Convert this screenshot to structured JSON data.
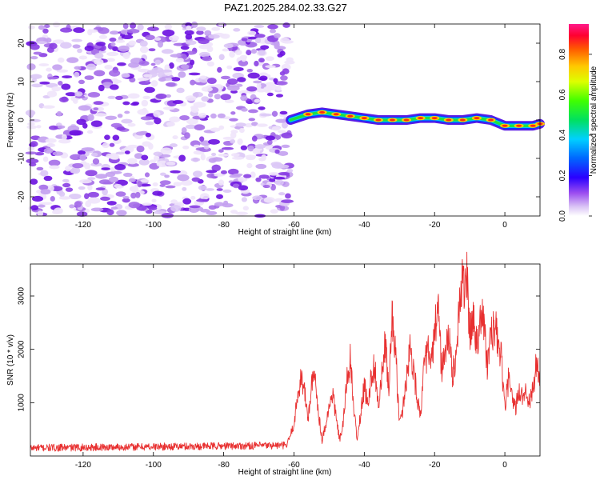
{
  "title": "PAZ1.2025.284.02.33.G27",
  "chart_data": [
    {
      "type": "heatmap",
      "name": "spectrogram",
      "xlabel": "Height of straight line (km)",
      "ylabel": "Frequency (Hz)",
      "xlim": [
        -135,
        10
      ],
      "ylim": [
        -25,
        25
      ],
      "xticks": [
        -120,
        -100,
        -80,
        -60,
        -40,
        -20,
        0
      ],
      "yticks": [
        -20,
        -10,
        0,
        10,
        20
      ],
      "noise_region_x": [
        -135,
        -61
      ],
      "signal_track": {
        "x": [
          -61,
          -56,
          -52,
          -48,
          -44,
          -40,
          -36,
          -32,
          -28,
          -24,
          -20,
          -16,
          -12,
          -8,
          -4,
          0,
          4,
          8,
          10
        ],
        "frequency": [
          0.0,
          1.5,
          2.0,
          1.5,
          1.0,
          0.5,
          0.0,
          0.0,
          0.0,
          0.5,
          0.5,
          0.0,
          0.0,
          0.5,
          0.0,
          -1.5,
          -1.5,
          -1.5,
          -1.0
        ]
      },
      "colorbar": {
        "label": "Normalized spectral amplitude",
        "ticks": [
          0.0,
          0.2,
          0.4,
          0.6,
          0.8
        ],
        "range": [
          0,
          0.95
        ]
      }
    },
    {
      "type": "line",
      "name": "snr",
      "xlabel": "Height of straight line (km)",
      "ylabel": "SNR (10 * v/v)",
      "xlim": [
        -135,
        10
      ],
      "ylim": [
        0,
        3600
      ],
      "xticks": [
        -120,
        -100,
        -80,
        -60,
        -40,
        -20,
        0
      ],
      "yticks": [
        1000,
        2000,
        3000
      ],
      "color": "#e83030",
      "series": {
        "x": [
          -135,
          -62,
          -60,
          -59,
          -58,
          -57,
          -56,
          -55,
          -54,
          -53,
          -52,
          -51,
          -50,
          -49,
          -48,
          -47,
          -46,
          -45,
          -44,
          -43,
          -42,
          -41,
          -40,
          -39,
          -38,
          -37,
          -36,
          -35,
          -34,
          -33,
          -32,
          -31,
          -30,
          -29,
          -28,
          -27,
          -26,
          -25,
          -24,
          -23,
          -22,
          -21,
          -20,
          -19,
          -18,
          -17,
          -16,
          -15,
          -14,
          -13,
          -12,
          -11,
          -10,
          -9,
          -8,
          -7,
          -6,
          -5,
          -4,
          -3,
          -2,
          -1,
          0,
          1,
          2,
          3,
          4,
          5,
          6,
          7,
          8,
          9,
          10
        ],
        "y": [
          150,
          200,
          600,
          1100,
          1500,
          1200,
          700,
          1300,
          1500,
          800,
          300,
          600,
          900,
          1200,
          700,
          300,
          600,
          1400,
          1800,
          900,
          300,
          800,
          1300,
          1000,
          1500,
          1700,
          900,
          1500,
          2100,
          1200,
          2700,
          1800,
          600,
          900,
          1500,
          2000,
          1700,
          1100,
          800,
          1600,
          2000,
          1700,
          2200,
          2900,
          1600,
          1900,
          2300,
          1500,
          1800,
          2800,
          3200,
          3500,
          2300,
          2600,
          2100,
          2700,
          2500,
          1700,
          2200,
          2400,
          2200,
          1800,
          900,
          1400,
          1100,
          900,
          1200,
          1100,
          1300,
          1000,
          1200,
          1800,
          1200
        ]
      }
    }
  ]
}
